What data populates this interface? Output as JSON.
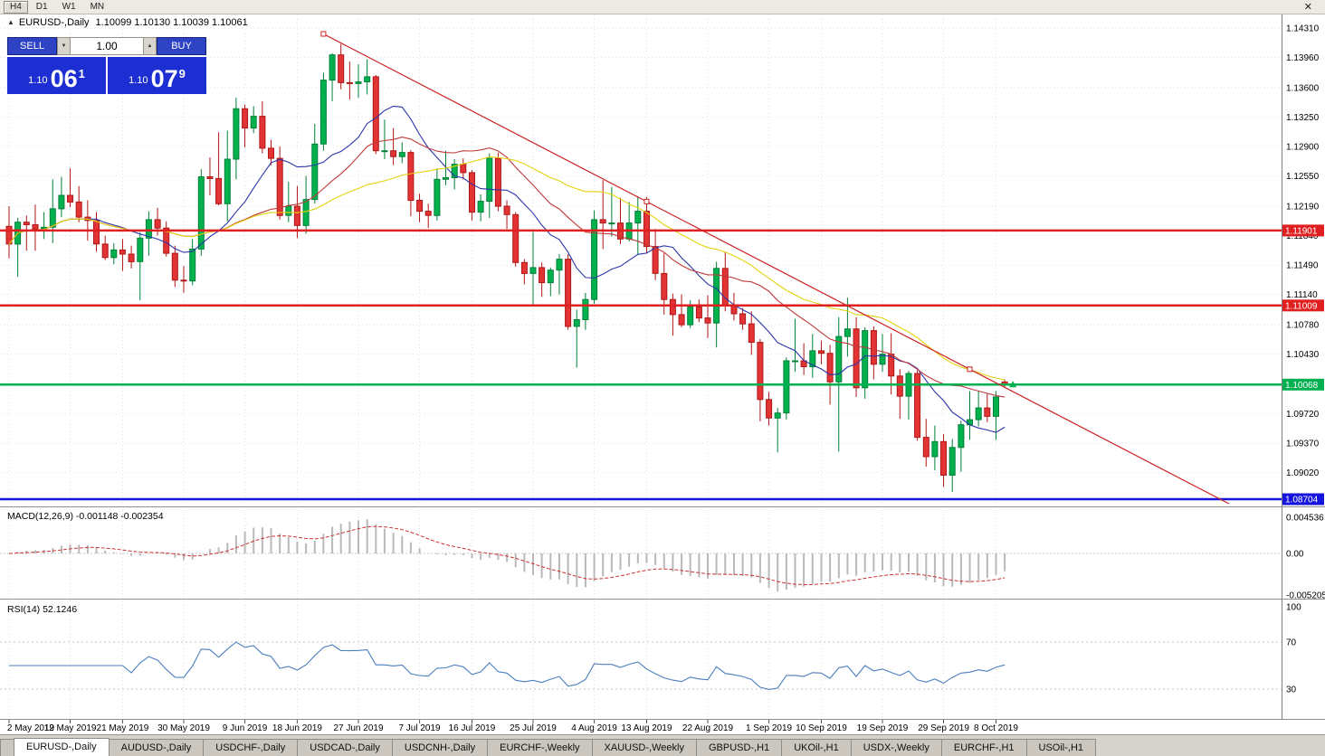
{
  "topbar": {
    "timeframes": [
      "H4",
      "D1",
      "W1",
      "MN"
    ],
    "active_timeframe": "H4",
    "close_label": "✕"
  },
  "icons": {
    "shift_marker": "▲",
    "dropdown_arrow": "▼",
    "spin_up": "▲"
  },
  "chart_header": {
    "symbol": "EURUSD-,Daily",
    "ohlc": "1.10099 1.10130 1.10039 1.10061"
  },
  "trade_panel": {
    "sell_label": "SELL",
    "buy_label": "BUY",
    "volume": "1.00",
    "sell_price": {
      "small": "1.10",
      "big": "06",
      "sup": "1"
    },
    "buy_price": {
      "small": "1.10",
      "big": "07",
      "sup": "9"
    }
  },
  "chart_data": {
    "type": "candlestick",
    "symbol": "EURUSD",
    "timeframe": "Daily",
    "price_axis_labels": [
      "1.14310",
      "1.13960",
      "1.13600",
      "1.13250",
      "1.12900",
      "1.12550",
      "1.12190",
      "1.11840",
      "1.11490",
      "1.11140",
      "1.10780",
      "1.10430",
      "1.09720",
      "1.09370",
      "1.09020"
    ],
    "date_ticks": [
      {
        "i": 0,
        "label": "2 May 2019"
      },
      {
        "i": 7,
        "label": "12 May 2019"
      },
      {
        "i": 13,
        "label": "21 May 2019"
      },
      {
        "i": 20,
        "label": "30 May 2019"
      },
      {
        "i": 27,
        "label": "9 Jun 2019"
      },
      {
        "i": 33,
        "label": "18 Jun 2019"
      },
      {
        "i": 40,
        "label": "27 Jun 2019"
      },
      {
        "i": 47,
        "label": "7 Jul 2019"
      },
      {
        "i": 53,
        "label": "16 Jul 2019"
      },
      {
        "i": 60,
        "label": "25 Jul 2019"
      },
      {
        "i": 67,
        "label": "4 Aug 2019"
      },
      {
        "i": 73,
        "label": "13 Aug 2019"
      },
      {
        "i": 80,
        "label": "22 Aug 2019"
      },
      {
        "i": 87,
        "label": "1 Sep 2019"
      },
      {
        "i": 93,
        "label": "10 Sep 2019"
      },
      {
        "i": 100,
        "label": "19 Sep 2019"
      },
      {
        "i": 107,
        "label": "29 Sep 2019"
      },
      {
        "i": 113,
        "label": "8 Oct 2019"
      }
    ],
    "candles": [
      [
        1.1195,
        1.1219,
        1.1157,
        1.1174
      ],
      [
        1.1174,
        1.1205,
        1.1135,
        1.12
      ],
      [
        1.12,
        1.1208,
        1.1166,
        1.1197
      ],
      [
        1.1197,
        1.1221,
        1.1166,
        1.1192
      ],
      [
        1.1192,
        1.1212,
        1.118,
        1.1194
      ],
      [
        1.1194,
        1.1251,
        1.1175,
        1.1216
      ],
      [
        1.1216,
        1.1254,
        1.1206,
        1.1232
      ],
      [
        1.1232,
        1.1264,
        1.1218,
        1.1224
      ],
      [
        1.1224,
        1.1243,
        1.12,
        1.1206
      ],
      [
        1.1206,
        1.1226,
        1.1178,
        1.1202
      ],
      [
        1.1202,
        1.1212,
        1.1165,
        1.1174
      ],
      [
        1.1174,
        1.1184,
        1.1155,
        1.1158
      ],
      [
        1.1158,
        1.1175,
        1.115,
        1.1167
      ],
      [
        1.1167,
        1.118,
        1.1142,
        1.1162
      ],
      [
        1.1162,
        1.1172,
        1.1145,
        1.1153
      ],
      [
        1.1153,
        1.1188,
        1.1107,
        1.1181
      ],
      [
        1.1181,
        1.1213,
        1.116,
        1.1203
      ],
      [
        1.1203,
        1.1217,
        1.1184,
        1.1193
      ],
      [
        1.1193,
        1.1201,
        1.1159,
        1.1163
      ],
      [
        1.1163,
        1.1172,
        1.1123,
        1.1131
      ],
      [
        1.1131,
        1.1148,
        1.1116,
        1.113
      ],
      [
        1.113,
        1.118,
        1.1125,
        1.1168
      ],
      [
        1.1168,
        1.1263,
        1.116,
        1.1254
      ],
      [
        1.1254,
        1.1277,
        1.1232,
        1.1252
      ],
      [
        1.1252,
        1.1307,
        1.122,
        1.1222
      ],
      [
        1.1222,
        1.1309,
        1.1201,
        1.1275
      ],
      [
        1.1275,
        1.1348,
        1.1251,
        1.1335
      ],
      [
        1.1335,
        1.134,
        1.1289,
        1.1312
      ],
      [
        1.1312,
        1.1338,
        1.1306,
        1.1326
      ],
      [
        1.1326,
        1.1344,
        1.1282,
        1.1288
      ],
      [
        1.1288,
        1.1298,
        1.1268,
        1.1276
      ],
      [
        1.1276,
        1.129,
        1.1203,
        1.1208
      ],
      [
        1.1208,
        1.1248,
        1.12,
        1.1219
      ],
      [
        1.1219,
        1.1243,
        1.1181,
        1.1196
      ],
      [
        1.1196,
        1.1255,
        1.1186,
        1.1227
      ],
      [
        1.1227,
        1.1317,
        1.1222,
        1.1293
      ],
      [
        1.1293,
        1.1378,
        1.1285,
        1.1369
      ],
      [
        1.1369,
        1.1401,
        1.1344,
        1.1399
      ],
      [
        1.1399,
        1.1412,
        1.1358,
        1.1366
      ],
      [
        1.1366,
        1.1391,
        1.1346,
        1.1365
      ],
      [
        1.1365,
        1.1388,
        1.1348,
        1.1367
      ],
      [
        1.1367,
        1.1394,
        1.1352,
        1.1373
      ],
      [
        1.1373,
        1.1375,
        1.1281,
        1.1285
      ],
      [
        1.1285,
        1.1322,
        1.1275,
        1.1285
      ],
      [
        1.1285,
        1.1312,
        1.1268,
        1.1278
      ],
      [
        1.1278,
        1.1295,
        1.127,
        1.1283
      ],
      [
        1.1283,
        1.1286,
        1.1207,
        1.1226
      ],
      [
        1.1226,
        1.1234,
        1.12,
        1.1213
      ],
      [
        1.1213,
        1.1222,
        1.1193,
        1.1208
      ],
      [
        1.1208,
        1.1264,
        1.1202,
        1.1251
      ],
      [
        1.1251,
        1.1285,
        1.1244,
        1.1253
      ],
      [
        1.1253,
        1.1275,
        1.1239,
        1.1269
      ],
      [
        1.1269,
        1.1276,
        1.1251,
        1.1259
      ],
      [
        1.1259,
        1.1262,
        1.1202,
        1.1212
      ],
      [
        1.1212,
        1.1233,
        1.1201,
        1.1225
      ],
      [
        1.1225,
        1.1282,
        1.1205,
        1.1276
      ],
      [
        1.1276,
        1.1283,
        1.1213,
        1.1219
      ],
      [
        1.1219,
        1.1226,
        1.1192,
        1.1209
      ],
      [
        1.1209,
        1.1212,
        1.1147,
        1.1152
      ],
      [
        1.1152,
        1.1156,
        1.1126,
        1.1139
      ],
      [
        1.1139,
        1.1188,
        1.1101,
        1.1146
      ],
      [
        1.1146,
        1.1152,
        1.1111,
        1.1128
      ],
      [
        1.1128,
        1.1146,
        1.1112,
        1.1143
      ],
      [
        1.1143,
        1.1162,
        1.1114,
        1.1156
      ],
      [
        1.1156,
        1.1162,
        1.1072,
        1.1076
      ],
      [
        1.1076,
        1.1096,
        1.1027,
        1.1084
      ],
      [
        1.1084,
        1.1116,
        1.1072,
        1.1108
      ],
      [
        1.1108,
        1.1214,
        1.1103,
        1.1203
      ],
      [
        1.1203,
        1.125,
        1.1168,
        1.1199
      ],
      [
        1.1199,
        1.1242,
        1.1183,
        1.1199
      ],
      [
        1.1199,
        1.1229,
        1.1174,
        1.118
      ],
      [
        1.118,
        1.1224,
        1.1177,
        1.1199
      ],
      [
        1.1199,
        1.1231,
        1.1162,
        1.1213
      ],
      [
        1.1213,
        1.123,
        1.1163,
        1.1171
      ],
      [
        1.1171,
        1.1192,
        1.1131,
        1.1139
      ],
      [
        1.1139,
        1.1163,
        1.109,
        1.1108
      ],
      [
        1.1108,
        1.1115,
        1.1065,
        1.109
      ],
      [
        1.109,
        1.1114,
        1.1075,
        1.1078
      ],
      [
        1.1078,
        1.1107,
        1.1074,
        1.1099
      ],
      [
        1.1099,
        1.1108,
        1.1081,
        1.1086
      ],
      [
        1.1086,
        1.1113,
        1.1062,
        1.108
      ],
      [
        1.108,
        1.1153,
        1.1051,
        1.1145
      ],
      [
        1.1145,
        1.1164,
        1.1094,
        1.1101
      ],
      [
        1.1101,
        1.1116,
        1.1083,
        1.1091
      ],
      [
        1.1091,
        1.1098,
        1.1072,
        1.1079
      ],
      [
        1.1079,
        1.1094,
        1.1042,
        1.1057
      ],
      [
        1.1057,
        1.1061,
        1.0963,
        1.0989
      ],
      [
        1.0989,
        1.0998,
        1.0958,
        1.0967
      ],
      [
        1.0967,
        1.0979,
        1.0926,
        1.0973
      ],
      [
        1.0973,
        1.1039,
        1.0965,
        1.1035
      ],
      [
        1.1035,
        1.1085,
        1.1022,
        1.1035
      ],
      [
        1.1035,
        1.1056,
        1.1018,
        1.1028
      ],
      [
        1.1028,
        1.1067,
        1.1015,
        1.1047
      ],
      [
        1.1047,
        1.1059,
        1.1031,
        1.1044
      ],
      [
        1.1044,
        1.1054,
        1.0983,
        1.101
      ],
      [
        1.101,
        1.1087,
        1.0927,
        1.1064
      ],
      [
        1.1064,
        1.111,
        1.104,
        1.1073
      ],
      [
        1.1073,
        1.1087,
        1.0992,
        1.1003
      ],
      [
        1.1003,
        1.1075,
        1.099,
        1.1071
      ],
      [
        1.1071,
        1.1076,
        1.1013,
        1.1031
      ],
      [
        1.1031,
        1.1067,
        1.1022,
        1.1043
      ],
      [
        1.1043,
        1.1068,
        1.0995,
        1.1017
      ],
      [
        1.1017,
        1.1025,
        1.0966,
        1.0993
      ],
      [
        1.0993,
        1.1023,
        1.0965,
        1.102
      ],
      [
        1.102,
        1.1024,
        1.094,
        1.0944
      ],
      [
        1.0944,
        1.0966,
        1.0909,
        1.0921
      ],
      [
        1.0921,
        1.0958,
        1.0905,
        1.0939
      ],
      [
        1.0939,
        1.0948,
        1.0885,
        1.0899
      ],
      [
        1.0899,
        1.0942,
        1.0879,
        1.0932
      ],
      [
        1.0932,
        1.0964,
        1.0903,
        1.0959
      ],
      [
        1.0959,
        1.0999,
        1.0941,
        1.0965
      ],
      [
        1.0965,
        1.0999,
        1.0957,
        1.0979
      ],
      [
        1.0979,
        1.0996,
        1.0962,
        1.0969
      ],
      [
        1.0969,
        1.0999,
        1.0941,
        1.0992
      ],
      [
        1.10099,
        1.1013,
        1.10039,
        1.10061
      ]
    ],
    "candle_colors": {
      "bull": "#00b14e",
      "bull_border": "#008038",
      "bear": "#e23434",
      "bear_border": "#b01616"
    },
    "moving_averages": [
      {
        "period": 10,
        "color": "#2b35a8"
      },
      {
        "period": 21,
        "color": "#c03a3a"
      },
      {
        "period": 34,
        "color": "#e3d30e"
      }
    ],
    "price_lines": [
      {
        "price": 1.11901,
        "label": "1.11901",
        "color": "#e02020"
      },
      {
        "price": 1.11009,
        "label": "1.11009",
        "color": "#e02020"
      },
      {
        "price": 1.10068,
        "label": "1.10068",
        "color": "#00b050"
      },
      {
        "price": 1.08704,
        "label": "1.08704",
        "color": "#1414dc"
      }
    ],
    "trendline": {
      "i1": 36,
      "p1": 1.1424,
      "i2": 110,
      "p2": 1.1025,
      "color": "#cc2222",
      "ray": true
    },
    "end_marker": {
      "index": 114,
      "price": 1.10068,
      "color": "#00b050",
      "shape": "up-arrow"
    },
    "macd": {
      "label": "MACD(12,26,9)",
      "values_label": "-0.001148 -0.002354",
      "fast": 12,
      "slow": 26,
      "signal_period": 9,
      "axis_labels": [
        "0.004536",
        "0.00",
        "-0.005205"
      ],
      "histogram_color": "#b9b9b9",
      "signal_color": "#cc3333"
    },
    "rsi": {
      "label": "RSI(14)",
      "value_label": "52.1246",
      "period": 14,
      "axis_labels": [
        "100",
        "70",
        "30"
      ],
      "levels": [
        70,
        30
      ],
      "color": "#4a7ebd"
    }
  },
  "tabs": {
    "active": "EURUSD-,Daily",
    "items": [
      "EURUSD-,Daily",
      "AUDUSD-,Daily",
      "USDCHF-,Daily",
      "USDCAD-,Daily",
      "USDCNH-,Daily",
      "EURCHF-,Weekly",
      "XAUUSD-,Weekly",
      "GBPUSD-,H1",
      "UKOil-,H1",
      "USDX-,Weekly",
      "EURCHF-,H1",
      "USOil-,H1"
    ]
  }
}
